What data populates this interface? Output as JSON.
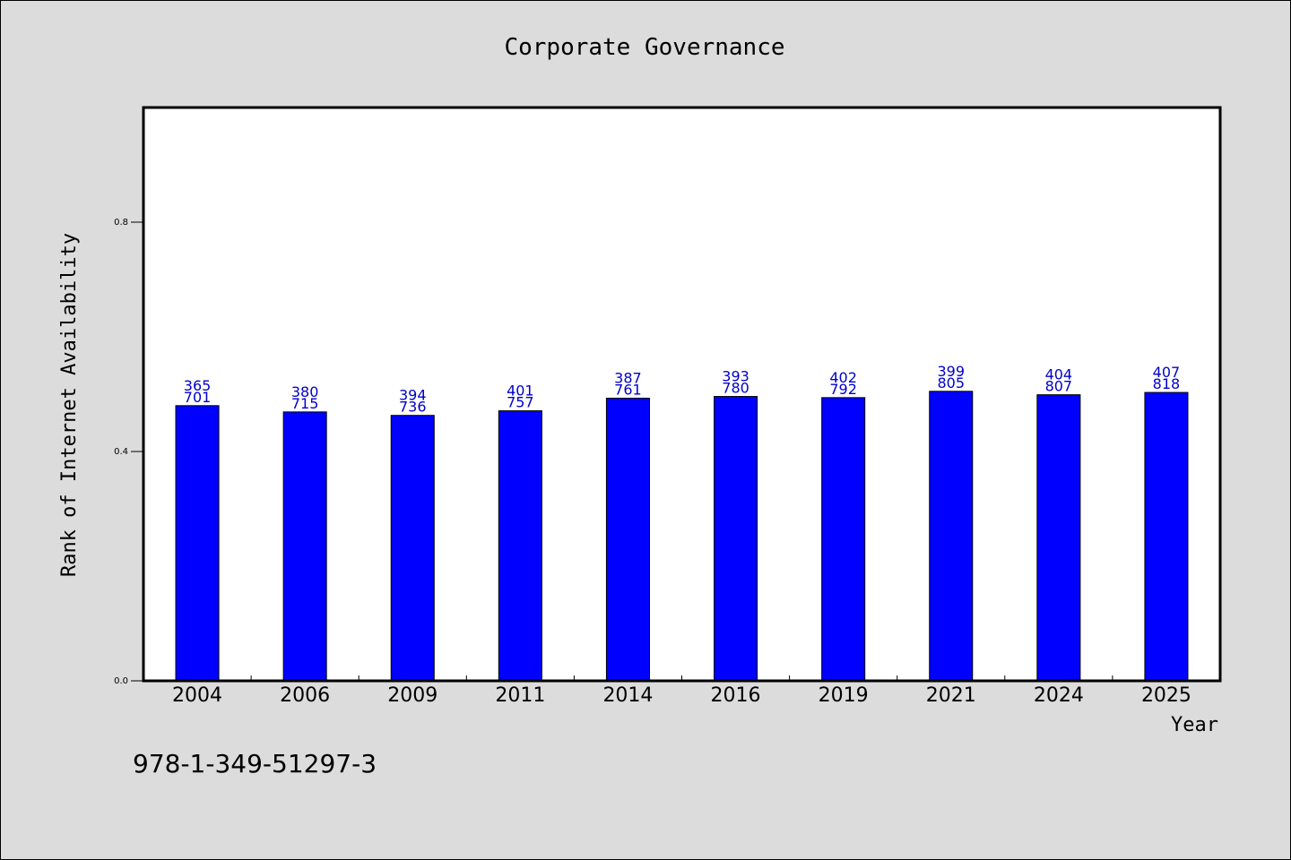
{
  "chart_data": {
    "type": "bar",
    "title": "Corporate Governance",
    "xlabel": "Year",
    "ylabel": "Rank of Internet Availability",
    "categories": [
      "2004",
      "2006",
      "2009",
      "2011",
      "2014",
      "2016",
      "2019",
      "2021",
      "2024",
      "2025"
    ],
    "values": [
      0.48,
      0.469,
      0.463,
      0.471,
      0.493,
      0.496,
      0.494,
      0.505,
      0.499,
      0.503
    ],
    "bar_labels": [
      [
        "365",
        "701"
      ],
      [
        "380",
        "715"
      ],
      [
        "394",
        "736"
      ],
      [
        "401",
        "757"
      ],
      [
        "387",
        "761"
      ],
      [
        "393",
        "780"
      ],
      [
        "402",
        "792"
      ],
      [
        "399",
        "805"
      ],
      [
        "404",
        "807"
      ],
      [
        "407",
        "818"
      ]
    ],
    "yticks": [
      {
        "value": 0.0,
        "label": "0.0"
      },
      {
        "value": 0.4,
        "label": "0.4"
      },
      {
        "value": 0.8,
        "label": "0.8"
      }
    ],
    "ylim": [
      0,
      1.0
    ],
    "grid": false,
    "legend": "none",
    "colors": {
      "bar": "#0000ff",
      "bar_edge": "#000000",
      "bar_label": "#0000cc",
      "plot_background": "#ffffff",
      "figure_background": "#dcdcdc"
    }
  },
  "footnote": "978-1-349-51297-3"
}
